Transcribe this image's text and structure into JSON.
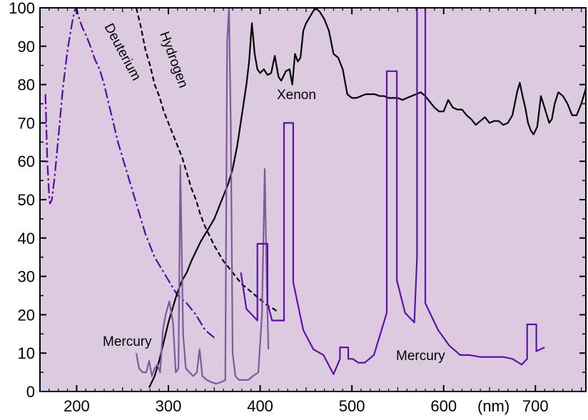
{
  "chart_data": {
    "type": "line",
    "title": "",
    "xlabel": "",
    "ylabel": "",
    "x_unit_label": "(nm)",
    "xlim": [
      160,
      755
    ],
    "ylim": [
      0,
      100
    ],
    "x_ticks": [
      200,
      300,
      400,
      500,
      600,
      700
    ],
    "y_ticks": [
      0,
      10,
      20,
      30,
      40,
      50,
      60,
      70,
      80,
      90,
      100
    ],
    "grid": false,
    "legend": "none",
    "colors": {
      "plot_background": "#dccbe0",
      "deuterium": "#5a0aa0",
      "hydrogen": "#000000",
      "xenon": "#000000",
      "mercury_low": "#7e5a9a",
      "mercury_high": "#6010a8"
    },
    "series": [
      {
        "name": "Deuterium",
        "style": "dash-dot",
        "points": [
          [
            166,
            77.5
          ],
          [
            168,
            60
          ],
          [
            170,
            51
          ],
          [
            171,
            49
          ],
          [
            173,
            50
          ],
          [
            176,
            56
          ],
          [
            180,
            66
          ],
          [
            185,
            79
          ],
          [
            190,
            89
          ],
          [
            195,
            96
          ],
          [
            198,
            99.5
          ],
          [
            200,
            99.8
          ],
          [
            203,
            97
          ],
          [
            206,
            95
          ],
          [
            210,
            93
          ],
          [
            215,
            90
          ],
          [
            220,
            86.5
          ],
          [
            225,
            84
          ],
          [
            230,
            80
          ],
          [
            235,
            75
          ],
          [
            240,
            70
          ],
          [
            245,
            65
          ],
          [
            250,
            61
          ],
          [
            255,
            57
          ],
          [
            260,
            53
          ],
          [
            265,
            49
          ],
          [
            270,
            45
          ],
          [
            275,
            41
          ],
          [
            280,
            38
          ],
          [
            285,
            35
          ],
          [
            290,
            33
          ],
          [
            295,
            31
          ],
          [
            300,
            29
          ],
          [
            305,
            27
          ],
          [
            310,
            25
          ],
          [
            315,
            24
          ],
          [
            320,
            23
          ],
          [
            325,
            21.5
          ],
          [
            330,
            20
          ],
          [
            335,
            18
          ],
          [
            340,
            16
          ],
          [
            345,
            15
          ],
          [
            350,
            14
          ]
        ]
      },
      {
        "name": "Hydrogen",
        "style": "dashed",
        "points": [
          [
            265,
            100
          ],
          [
            270,
            95
          ],
          [
            275,
            89
          ],
          [
            280,
            85
          ],
          [
            285,
            80
          ],
          [
            290,
            77
          ],
          [
            295,
            73
          ],
          [
            300,
            70
          ],
          [
            305,
            67
          ],
          [
            310,
            64
          ],
          [
            315,
            61
          ],
          [
            320,
            57
          ],
          [
            325,
            53
          ],
          [
            330,
            50
          ],
          [
            335,
            46
          ],
          [
            340,
            43
          ],
          [
            345,
            40.5
          ],
          [
            350,
            38
          ],
          [
            355,
            36
          ],
          [
            360,
            34
          ],
          [
            365,
            32.5
          ],
          [
            370,
            31
          ],
          [
            375,
            29.5
          ],
          [
            380,
            28
          ],
          [
            385,
            27
          ],
          [
            390,
            26
          ],
          [
            395,
            25
          ],
          [
            400,
            24
          ],
          [
            405,
            23
          ],
          [
            410,
            22
          ],
          [
            415,
            21.5
          ],
          [
            420,
            20.5
          ]
        ]
      },
      {
        "name": "Xenon",
        "style": "solid",
        "points": [
          [
            279,
            1
          ],
          [
            285,
            4
          ],
          [
            290,
            8
          ],
          [
            295,
            13
          ],
          [
            300,
            18
          ],
          [
            305,
            22
          ],
          [
            310,
            26
          ],
          [
            315,
            29
          ],
          [
            320,
            31
          ],
          [
            325,
            34
          ],
          [
            330,
            36.5
          ],
          [
            335,
            39
          ],
          [
            340,
            41
          ],
          [
            345,
            43
          ],
          [
            350,
            45
          ],
          [
            355,
            48
          ],
          [
            360,
            51
          ],
          [
            365,
            54
          ],
          [
            370,
            58
          ],
          [
            375,
            64
          ],
          [
            380,
            72
          ],
          [
            385,
            80
          ],
          [
            388,
            86
          ],
          [
            391,
            96
          ],
          [
            394,
            88
          ],
          [
            397,
            84
          ],
          [
            400,
            83
          ],
          [
            404,
            84
          ],
          [
            408,
            82.5
          ],
          [
            412,
            83
          ],
          [
            416,
            87.5
          ],
          [
            420,
            82
          ],
          [
            423,
            81
          ],
          [
            428,
            83.5
          ],
          [
            432,
            84
          ],
          [
            435,
            80
          ],
          [
            438,
            88
          ],
          [
            441,
            86
          ],
          [
            444,
            87
          ],
          [
            447,
            94
          ],
          [
            450,
            96
          ],
          [
            455,
            98
          ],
          [
            460,
            100
          ],
          [
            465,
            99
          ],
          [
            470,
            97
          ],
          [
            475,
            94
          ],
          [
            480,
            88
          ],
          [
            485,
            87
          ],
          [
            490,
            84
          ],
          [
            495,
            77.5
          ],
          [
            500,
            76.5
          ],
          [
            505,
            76.5
          ],
          [
            510,
            77
          ],
          [
            515,
            77.5
          ],
          [
            520,
            77.5
          ],
          [
            525,
            77.5
          ],
          [
            530,
            77
          ],
          [
            535,
            77
          ],
          [
            540,
            76.5
          ],
          [
            545,
            76.5
          ],
          [
            550,
            76.5
          ],
          [
            555,
            76
          ],
          [
            560,
            76.5
          ],
          [
            565,
            77
          ],
          [
            570,
            77.5
          ],
          [
            575,
            78
          ],
          [
            580,
            77
          ],
          [
            585,
            75.5
          ],
          [
            590,
            74
          ],
          [
            595,
            73
          ],
          [
            600,
            73
          ],
          [
            605,
            76
          ],
          [
            610,
            74
          ],
          [
            615,
            73.5
          ],
          [
            620,
            73.5
          ],
          [
            625,
            72
          ],
          [
            630,
            71
          ],
          [
            635,
            69.5
          ],
          [
            640,
            70.5
          ],
          [
            645,
            71.5
          ],
          [
            650,
            70
          ],
          [
            655,
            70.5
          ],
          [
            660,
            70.5
          ],
          [
            665,
            69.5
          ],
          [
            670,
            70
          ],
          [
            675,
            72
          ],
          [
            680,
            78
          ],
          [
            683,
            80.5
          ],
          [
            686,
            77
          ],
          [
            689,
            74
          ],
          [
            692,
            70
          ],
          [
            695,
            68
          ],
          [
            698,
            67
          ],
          [
            702,
            69
          ],
          [
            706,
            77
          ],
          [
            710,
            74
          ],
          [
            715,
            70
          ],
          [
            718,
            71
          ],
          [
            721,
            75
          ],
          [
            725,
            78
          ],
          [
            730,
            77
          ],
          [
            735,
            75
          ],
          [
            740,
            72
          ],
          [
            745,
            72
          ],
          [
            750,
            75
          ],
          [
            755,
            79
          ]
        ]
      },
      {
        "name": "Mercury",
        "label_index": 0,
        "style": "solid",
        "points": [
          [
            265,
            10
          ],
          [
            268,
            6
          ],
          [
            272,
            5
          ],
          [
            276,
            5
          ],
          [
            279,
            8
          ],
          [
            282,
            4
          ],
          [
            285,
            6
          ],
          [
            288,
            7
          ],
          [
            291,
            5
          ],
          [
            294,
            16
          ],
          [
            297,
            20
          ],
          [
            301,
            23.5
          ],
          [
            305,
            18
          ],
          [
            308,
            5
          ],
          [
            311,
            6
          ],
          [
            313,
            59
          ],
          [
            316,
            15
          ],
          [
            319,
            6
          ],
          [
            323,
            5
          ],
          [
            327,
            4
          ],
          [
            331,
            5
          ],
          [
            334,
            11
          ],
          [
            337,
            4
          ],
          [
            342,
            3
          ],
          [
            346,
            2.5
          ],
          [
            352,
            2
          ],
          [
            358,
            2.5
          ],
          [
            362,
            3
          ],
          [
            364,
            91
          ],
          [
            366,
            100
          ],
          [
            368,
            70
          ],
          [
            370,
            10
          ],
          [
            373,
            4
          ],
          [
            377,
            3
          ],
          [
            382,
            3
          ],
          [
            387,
            3
          ],
          [
            392,
            4
          ],
          [
            398,
            5
          ],
          [
            402,
            20
          ],
          [
            405,
            58
          ],
          [
            407,
            30
          ],
          [
            409,
            11
          ]
        ]
      },
      {
        "name": "Mercury",
        "label_index": 1,
        "style": "solid",
        "points": [
          [
            379,
            31
          ],
          [
            385,
            21.5
          ],
          [
            397,
            18.5
          ],
          [
            397,
            38.5
          ],
          [
            408,
            38.5
          ],
          [
            408,
            23
          ],
          [
            413,
            18.5
          ],
          [
            426,
            18.5
          ],
          [
            426,
            70
          ],
          [
            436,
            70
          ],
          [
            436,
            28.5
          ],
          [
            447,
            16
          ],
          [
            458,
            11
          ],
          [
            469,
            9.5
          ],
          [
            480,
            4.5
          ],
          [
            487,
            8.5
          ],
          [
            487,
            11.5
          ],
          [
            496,
            11.5
          ],
          [
            496,
            8.5
          ],
          [
            501,
            8.5
          ],
          [
            507,
            7.5
          ],
          [
            514,
            7.5
          ],
          [
            524,
            9.5
          ],
          [
            538,
            20.5
          ],
          [
            538,
            83.5
          ],
          [
            549,
            83.5
          ],
          [
            549,
            29
          ],
          [
            558,
            20.5
          ],
          [
            568,
            18
          ],
          [
            571,
            35
          ],
          [
            571,
            100
          ],
          [
            580,
            100
          ],
          [
            580,
            23
          ],
          [
            594,
            16
          ],
          [
            606,
            12
          ],
          [
            618,
            9.5
          ],
          [
            628,
            9.5
          ],
          [
            640,
            9
          ],
          [
            650,
            9
          ],
          [
            665,
            9
          ],
          [
            675,
            8.5
          ],
          [
            685,
            7
          ],
          [
            691,
            8.5
          ],
          [
            691,
            17.5
          ],
          [
            701,
            17.5
          ],
          [
            701,
            10.5
          ],
          [
            710,
            11.5
          ]
        ]
      }
    ],
    "annotations": {
      "deuterium": "Deuterium",
      "hydrogen": "Hydrogen",
      "xenon": "Xenon",
      "mercury_left": "Mercury",
      "mercury_right": "Mercury"
    }
  }
}
